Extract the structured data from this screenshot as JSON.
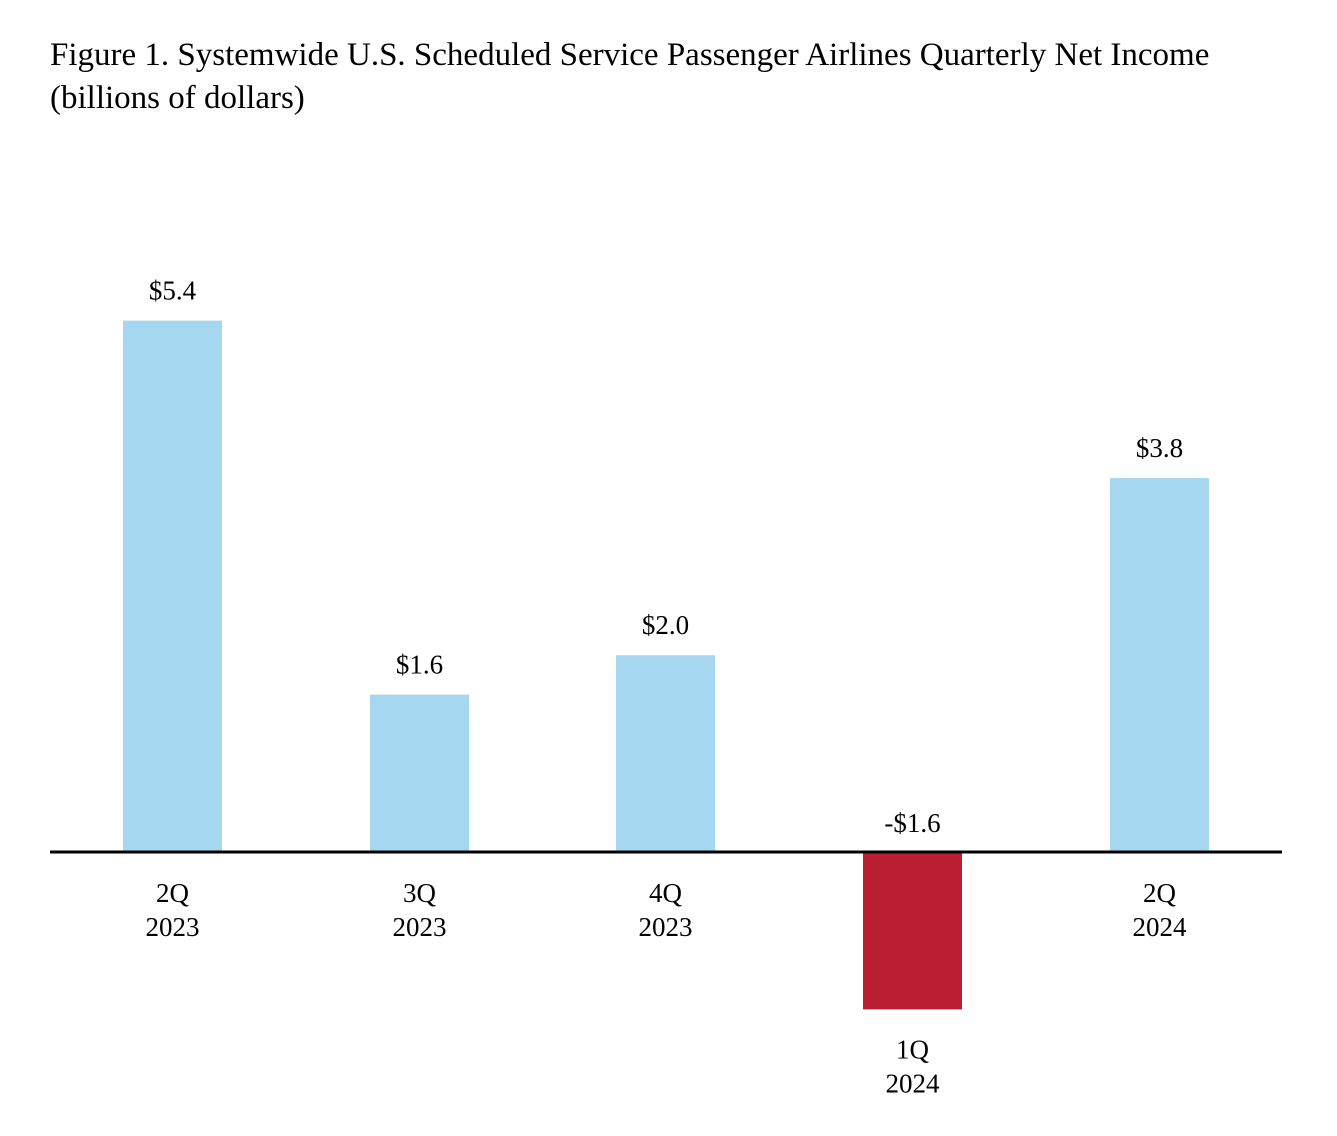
{
  "chart_data": {
    "type": "bar",
    "title_line1": "Figure 1. Systemwide U.S. Scheduled Service Passenger Airlines Quarterly Net Income",
    "title_line2": "(billions of dollars)",
    "xlabel": "",
    "ylabel": "",
    "categories": [
      [
        "2Q",
        "2023"
      ],
      [
        "3Q",
        "2023"
      ],
      [
        "4Q",
        "2023"
      ],
      [
        "1Q",
        "2024"
      ],
      [
        "2Q",
        "2024"
      ]
    ],
    "values": [
      5.4,
      1.6,
      2.0,
      -1.6,
      3.8
    ],
    "value_labels": [
      "$5.4",
      "$1.6",
      "$2.0",
      "-$1.6",
      "$3.8"
    ],
    "ylim": [
      -1.6,
      5.4
    ],
    "grid": false,
    "legend": "none",
    "colors": {
      "positive": "#a6d7f0",
      "negative": "#ba1f31",
      "axis": "#000000"
    }
  }
}
